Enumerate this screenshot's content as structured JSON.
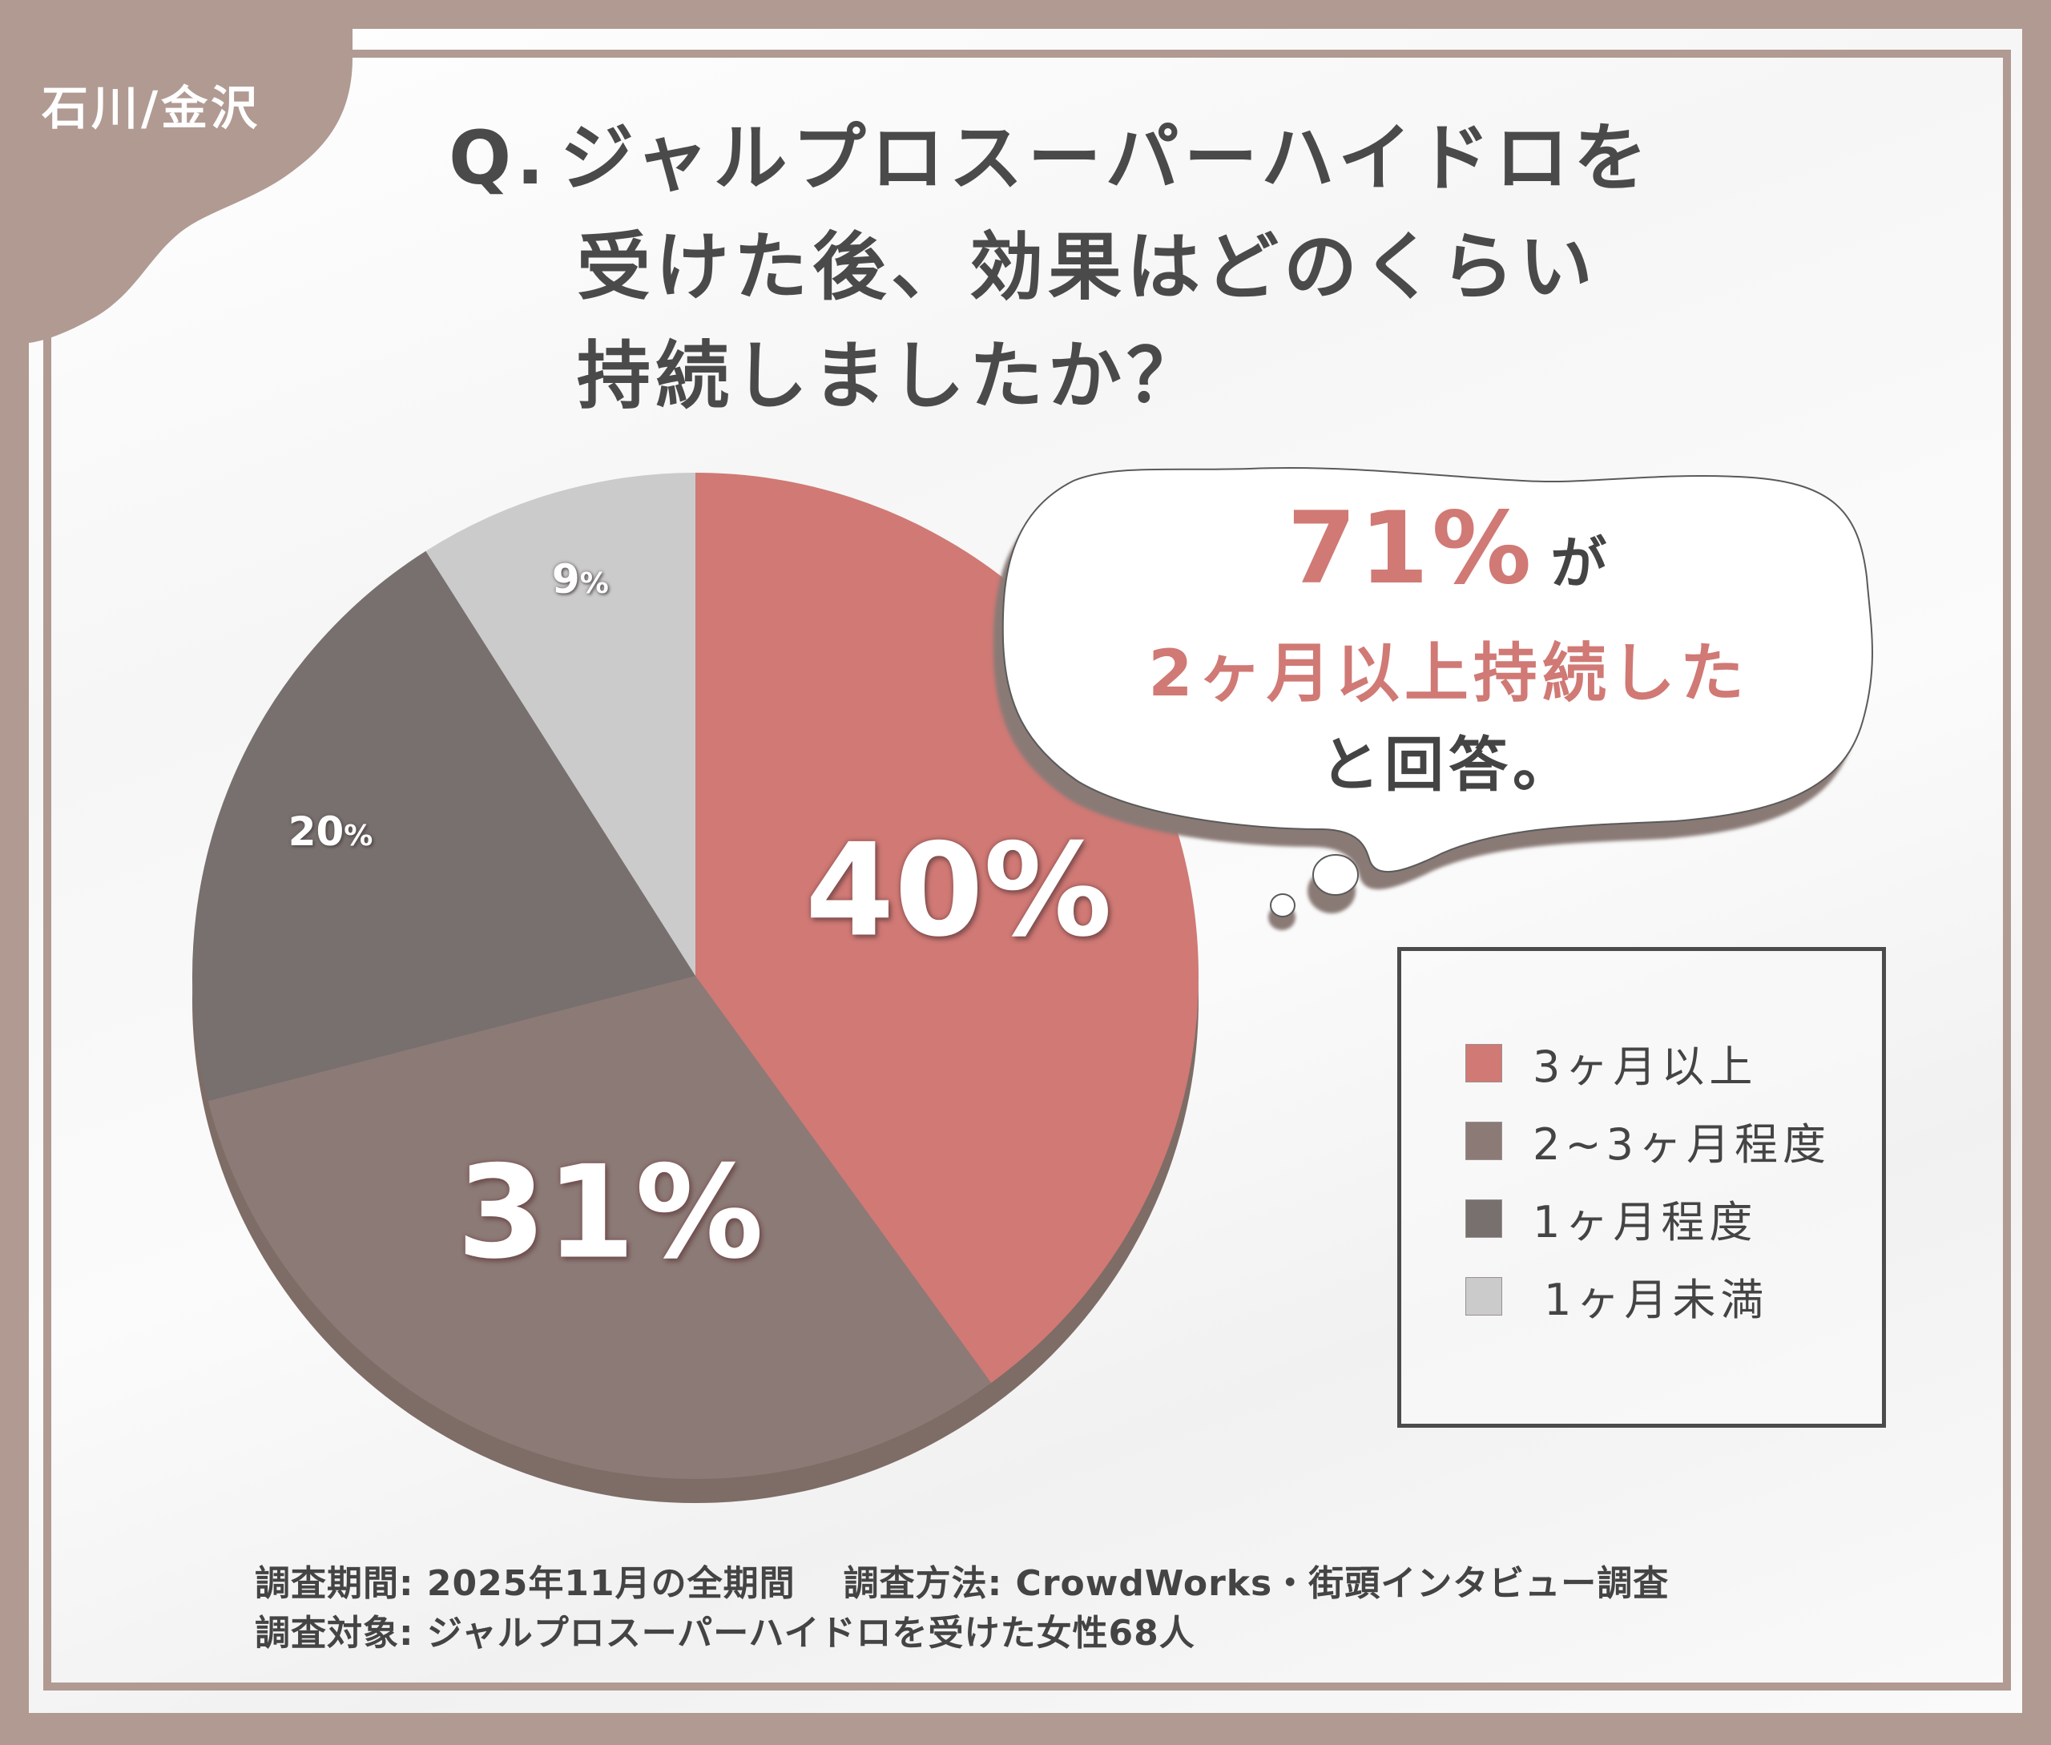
{
  "badge": {
    "region": "石川/金沢"
  },
  "question": {
    "prefix": "Q.",
    "line1": "ジャルプロスーパーハイドロを",
    "line2": "受けた後、効果はどのくらい",
    "line3": "持続しましたか？"
  },
  "callout": {
    "highlight_value": "71%",
    "particle": "が",
    "line2": "2ヶ月以上持続した",
    "line3": "と回答。"
  },
  "legend": {
    "items": [
      {
        "label": "3ヶ月以上",
        "color": "#d07975"
      },
      {
        "label": "2~3ヶ月程度",
        "color": "#8c7a77"
      },
      {
        "label": "1ヶ月程度",
        "color": "#77706e"
      },
      {
        "label": "1ヶ月未満",
        "color": "#cbcbcb"
      }
    ]
  },
  "slice_labels": {
    "s0": "40%",
    "s1": "31%",
    "s2": "20",
    "s3": "9"
  },
  "footnote": {
    "period": "調査期間: 2025年11月の全期間",
    "method": "調査方法: CrowdWorks・街頭インタビュー調査",
    "target": "調査対象: ジャルプロスーパーハイドロを受けた女性68人"
  },
  "chart_data": {
    "type": "pie",
    "title": "Q.ジャルプロスーパーハイドロを受けた後、効果はどのくらい持続しましたか？",
    "categories": [
      "3ヶ月以上",
      "2~3ヶ月程度",
      "1ヶ月程度",
      "1ヶ月未満"
    ],
    "values": [
      40,
      31,
      20,
      9
    ],
    "unit": "%",
    "colors": [
      "#d07975",
      "#8c7a77",
      "#77706e",
      "#cbcbcb"
    ],
    "start_angle": "12 o'clock, clockwise",
    "legend_position": "right",
    "annotation": "71%が2ヶ月以上持続したと回答。",
    "sample_size": "68人"
  }
}
